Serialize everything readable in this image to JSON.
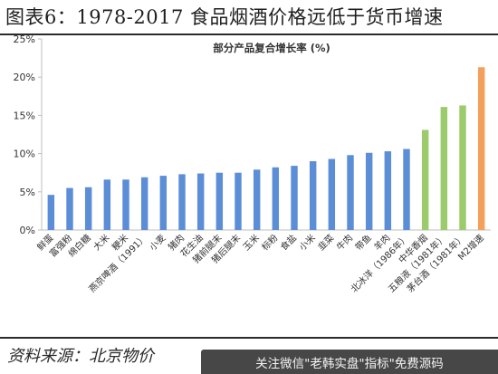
{
  "figure_title": "图表6：1978-2017 食品烟酒价格远低于货币增速",
  "source": "资料来源：北京物价",
  "watermark": "关注微信\"老韩实盘\"指标\"免费源码",
  "colors": {
    "blue": "#5b8ed6",
    "green": "#9ccb6b",
    "orange": "#f4a05a",
    "axis": "#bfbfbf"
  },
  "chart_data": {
    "type": "bar",
    "title": "部分产品复合增长率 (%)",
    "xlabel": "",
    "ylabel": "",
    "ylim": [
      0,
      25
    ],
    "yticks": [
      "0%",
      "5%",
      "10%",
      "15%",
      "20%",
      "25%"
    ],
    "grid": false,
    "categories": [
      "鲜蛋",
      "富强粉",
      "绵白糖",
      "大米",
      "粳米",
      "燕京啤酒（1991）",
      "小麦",
      "猪肉",
      "花生油",
      "猪前腿末",
      "猪后腿末",
      "玉米",
      "标粉",
      "食盐",
      "小米",
      "韭菜",
      "牛肉",
      "带鱼",
      "羊肉",
      "北冰洋（1986年）",
      "中华香烟",
      "五粮液（1981年）",
      "茅台酒（1981年）",
      "M2增速"
    ],
    "values": [
      4.6,
      5.5,
      5.6,
      6.6,
      6.6,
      6.9,
      7.1,
      7.3,
      7.4,
      7.5,
      7.5,
      7.9,
      8.2,
      8.4,
      9.0,
      9.3,
      9.8,
      10.1,
      10.3,
      10.6,
      13.1,
      16.1,
      16.3,
      21.3
    ],
    "bar_colors": [
      "blue",
      "blue",
      "blue",
      "blue",
      "blue",
      "blue",
      "blue",
      "blue",
      "blue",
      "blue",
      "blue",
      "blue",
      "blue",
      "blue",
      "blue",
      "blue",
      "blue",
      "blue",
      "blue",
      "blue",
      "green",
      "green",
      "green",
      "orange"
    ]
  }
}
